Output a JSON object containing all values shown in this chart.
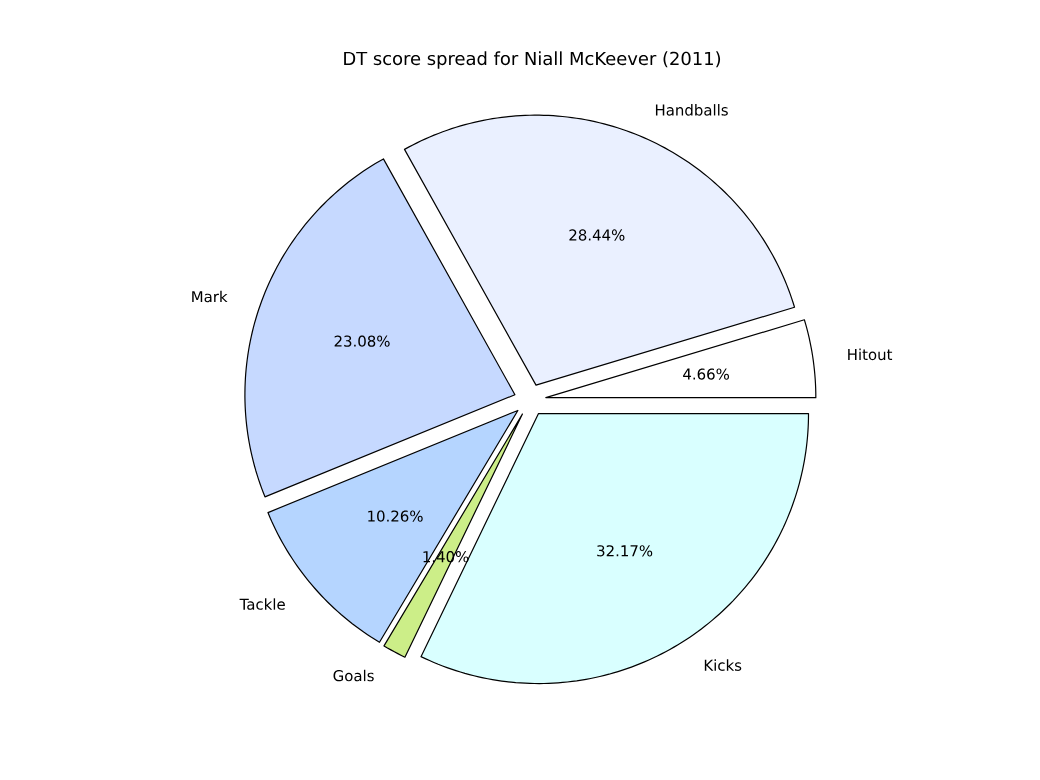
{
  "chart_data": {
    "type": "pie",
    "title": "DT score spread for Niall McKeever (2011)",
    "categories": [
      "Hitout",
      "Handballs",
      "Mark",
      "Tackle",
      "Goals",
      "Kicks"
    ],
    "values": [
      4.66,
      28.44,
      23.08,
      10.26,
      1.4,
      32.17
    ],
    "value_labels": [
      "4.66%",
      "28.44%",
      "23.08%",
      "10.26%",
      "1.40%",
      "32.17%"
    ],
    "colors": [
      "#ffffff",
      "#eaf0ff",
      "#c6d9ff",
      "#b5d5ff",
      "#ccee88",
      "#d9ffff"
    ]
  }
}
